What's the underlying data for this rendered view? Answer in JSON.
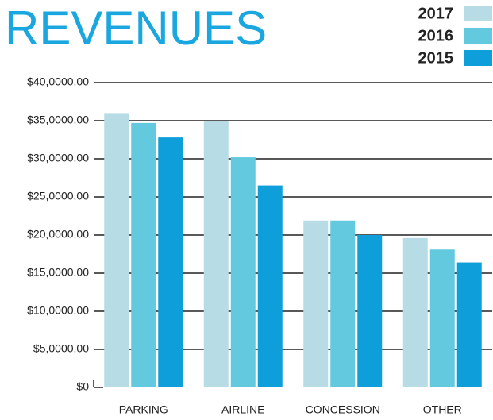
{
  "chart_data": {
    "type": "bar",
    "title": "REVENUES",
    "categories": [
      "PARKING",
      "AIRLINE",
      "CONCESSION",
      "OTHER"
    ],
    "series": [
      {
        "name": "2017",
        "color": "#b8dce6",
        "values": [
          360000,
          350000,
          219000,
          196000
        ]
      },
      {
        "name": "2016",
        "color": "#63c9df",
        "values": [
          347000,
          302000,
          219000,
          181000
        ]
      },
      {
        "name": "2015",
        "color": "#0e9fdb",
        "values": [
          328000,
          265000,
          200000,
          164000
        ]
      }
    ],
    "ylim": [
      0,
      400000
    ],
    "yticks": [
      {
        "value": 0,
        "label": "$0"
      },
      {
        "value": 50000,
        "label": "$5,0000.00"
      },
      {
        "value": 100000,
        "label": "$10,0000.00"
      },
      {
        "value": 150000,
        "label": "$15,0000.00"
      },
      {
        "value": 200000,
        "label": "$20,0000.00"
      },
      {
        "value": 250000,
        "label": "$25,0000.00"
      },
      {
        "value": 300000,
        "label": "$30,0000.00"
      },
      {
        "value": 350000,
        "label": "$35,0000.00"
      },
      {
        "value": 400000,
        "label": "$40,0000.00"
      }
    ],
    "grid": true,
    "legend": "top-right"
  }
}
